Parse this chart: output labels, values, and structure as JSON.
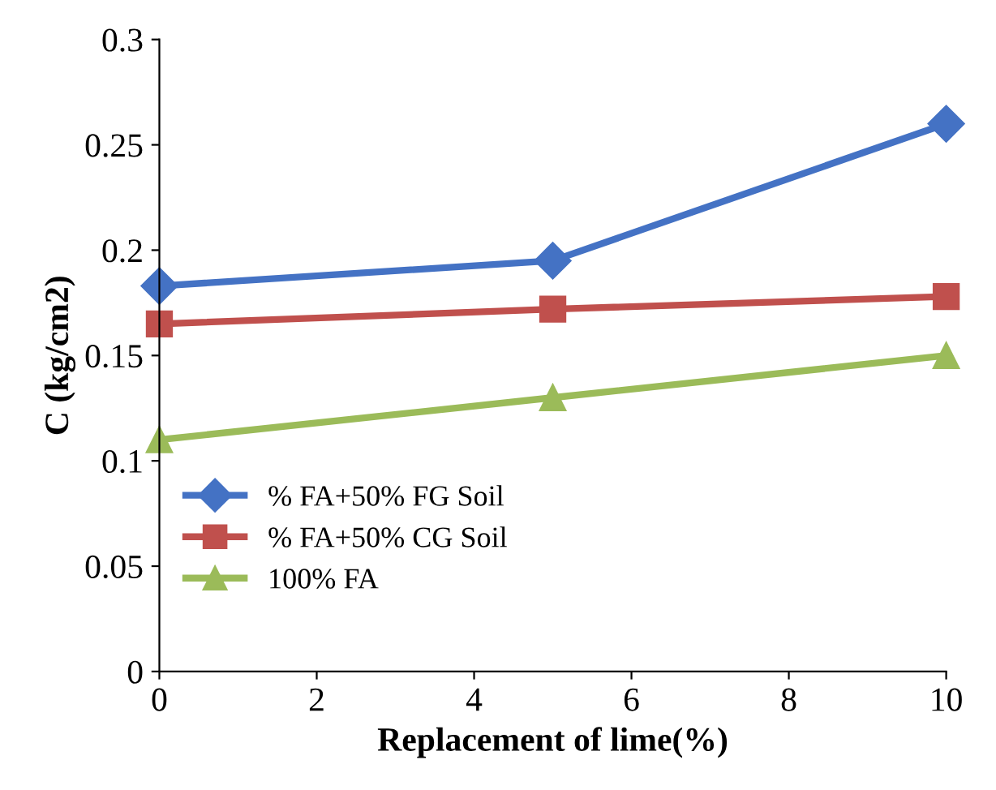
{
  "chart_data": {
    "type": "line",
    "xlabel": "Replacement of lime(%)",
    "ylabel": "C (kg/cm2)",
    "x": [
      0,
      5,
      10
    ],
    "series": [
      {
        "name": "% FA+50% FG Soil",
        "color": "#4472c4",
        "marker": "diamond",
        "values": [
          0.183,
          0.195,
          0.26
        ]
      },
      {
        "name": "% FA+50% CG Soil",
        "color": "#c0504d",
        "marker": "square",
        "values": [
          0.165,
          0.172,
          0.178
        ]
      },
      {
        "name": "100% FA",
        "color": "#9bbb59",
        "marker": "triangle",
        "values": [
          0.11,
          0.13,
          0.15
        ]
      }
    ],
    "xlim": [
      0,
      10
    ],
    "xticks": [
      0,
      2,
      4,
      6,
      8,
      10
    ],
    "ylim": [
      0,
      0.3
    ],
    "yticks": [
      0,
      0.05,
      0.1,
      0.15,
      0.2,
      0.25,
      0.3
    ],
    "grid": false,
    "legend": "bottom left",
    "line_style": "solid"
  }
}
